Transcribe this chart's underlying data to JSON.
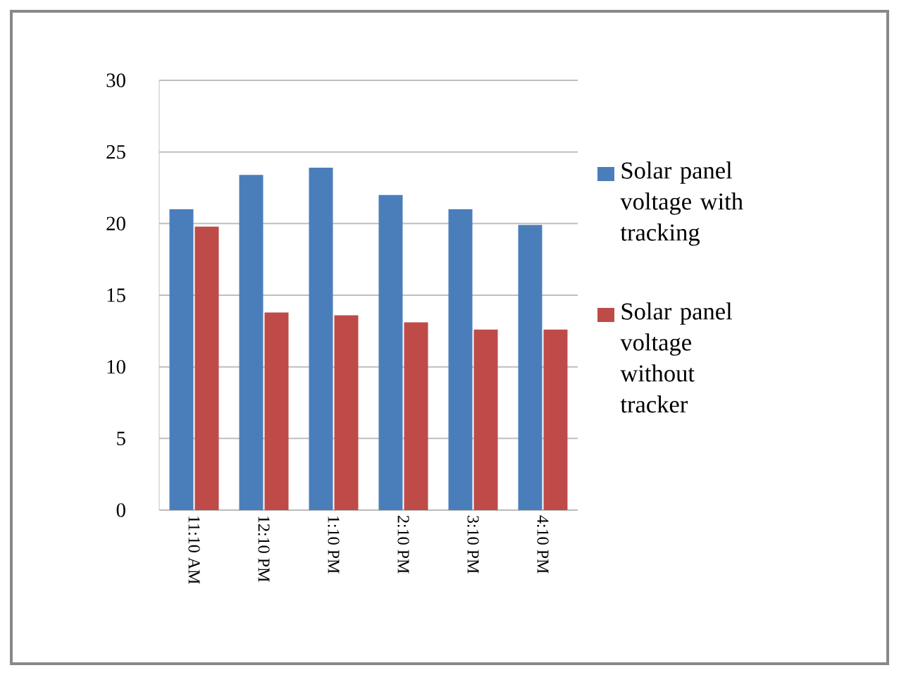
{
  "chart_data": {
    "type": "bar",
    "categories": [
      "11:10 AM",
      "12:10 PM",
      "1:10 PM",
      "2:10 PM",
      "3:10 PM",
      "4:10 PM"
    ],
    "series": [
      {
        "name": "Solar panel voltage with tracking",
        "color": "#4a7ebb",
        "values": [
          21.0,
          23.4,
          23.9,
          22.0,
          21.0,
          19.9
        ]
      },
      {
        "name": "Solar panel voltage without tracker",
        "color": "#be4b48",
        "values": [
          19.8,
          13.8,
          13.6,
          13.1,
          12.6,
          12.6
        ]
      }
    ],
    "ylim": [
      0,
      30
    ],
    "yticks": [
      0,
      5,
      10,
      15,
      20,
      25,
      30
    ],
    "grid": "y",
    "legend": "right"
  }
}
